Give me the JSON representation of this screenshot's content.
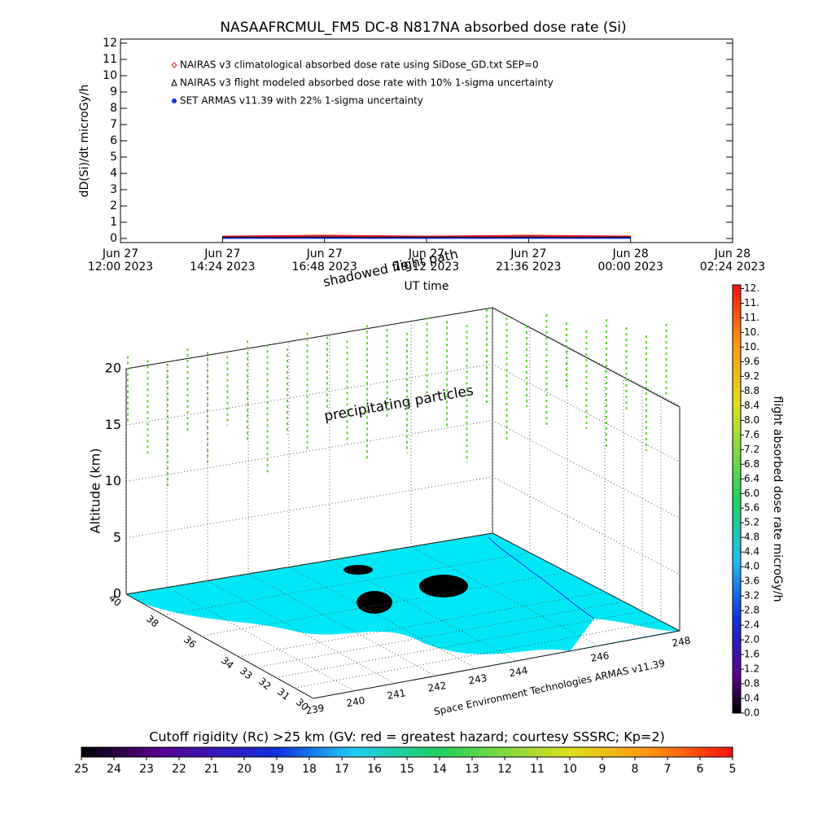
{
  "chart_data": [
    {
      "type": "line",
      "title": "NASAAFRCMUL_FM5 DC-8   N817NA absorbed dose rate (Si)",
      "y_label": "dD(Si)/dt microGy/h",
      "x_label": "UT time",
      "categories": [
        [
          "Jun 27",
          "12:00 2023"
        ],
        [
          "Jun 27",
          "14:24 2023"
        ],
        [
          "Jun 27",
          "16:48 2023"
        ],
        [
          "Jun 27",
          "19:12 2023"
        ],
        [
          "Jun 27",
          "21:36 2023"
        ],
        [
          "Jun 28",
          "00:00 2023"
        ],
        [
          "Jun 28",
          "02:24 2023"
        ]
      ],
      "ylim": [
        -0.25,
        12.25
      ],
      "yticks": [
        0,
        1,
        2,
        3,
        4,
        5,
        6,
        7,
        8,
        9,
        10,
        11,
        12
      ],
      "series": [
        {
          "name": "NAIRAS v3 climatological absorbed dose rate using SiDose_GD.txt SEP=0",
          "color": "#e02020",
          "marker": "diamond",
          "values": [
            null,
            0.1,
            0.15,
            0.1,
            0.15,
            0.1,
            null
          ]
        },
        {
          "name": "NAIRAS v3 flight modeled absorbed dose rate with 10% 1-sigma uncertainty",
          "color": "#000000",
          "marker": "triangle",
          "values": [
            null,
            0.05,
            0.05,
            0.05,
            0.05,
            0.05,
            null
          ]
        },
        {
          "name": "SET ARMAS v11.39 with 22% 1-sigma uncertainty",
          "color": "#1030e0",
          "marker": "circle",
          "values": [
            null,
            0.02,
            0.02,
            0.02,
            0.02,
            0.02,
            null
          ]
        }
      ]
    },
    {
      "type": "3d",
      "z_label": "Altitude (km)",
      "annotations": [
        "precipitating particles",
        "shadowed flight path",
        "Space Environment Technologies ARMAS v11.39"
      ],
      "zlim": [
        0,
        20
      ],
      "zticks": [
        0,
        5,
        10,
        15,
        20
      ],
      "xlim": [
        40,
        30
      ],
      "xticks": [
        30,
        31,
        32,
        33,
        34,
        36,
        38,
        40
      ],
      "ylim": [
        239,
        248
      ],
      "yticks": [
        239,
        240,
        241,
        242,
        243,
        244,
        246,
        248
      ]
    },
    {
      "type": "colorbar",
      "orientation": "vertical",
      "title": "flight absorbed dose rate microGy/h",
      "ylim": [
        0,
        11.7
      ],
      "yticks": [
        {
          "value": 0,
          "label": "0.0"
        },
        0.4,
        0.8,
        1.2,
        1.6,
        {
          "value": 2,
          "label": "2.0"
        },
        2.4,
        2.8,
        3.2,
        3.6,
        {
          "value": 4,
          "label": "4.0"
        },
        4.4,
        4.8,
        5.2,
        5.6,
        {
          "value": 6,
          "label": "6.0"
        },
        6.4,
        6.8,
        7.2,
        7.6,
        {
          "value": 8,
          "label": "8.0"
        },
        8.4,
        8.8,
        9.2,
        9.6,
        {
          "value": 10,
          "label": "10."
        },
        {
          "value": 10.4,
          "label": "10."
        },
        {
          "value": 10.8,
          "label": "11."
        },
        {
          "value": 11.2,
          "label": "11."
        },
        {
          "value": 11.6,
          "label": "12."
        }
      ]
    },
    {
      "type": "colorbar",
      "orientation": "horizontal",
      "title": "Cutoff rigidity (Rc) >25 km (GV: red = greatest hazard; courtesy SSSRC; Kp=2)",
      "xlim": [
        25,
        5
      ],
      "xticks": [
        25,
        24,
        23,
        22,
        21,
        20,
        19,
        18,
        17,
        16,
        15,
        14,
        13,
        12,
        11,
        10,
        9,
        8,
        7,
        6,
        5
      ]
    }
  ]
}
